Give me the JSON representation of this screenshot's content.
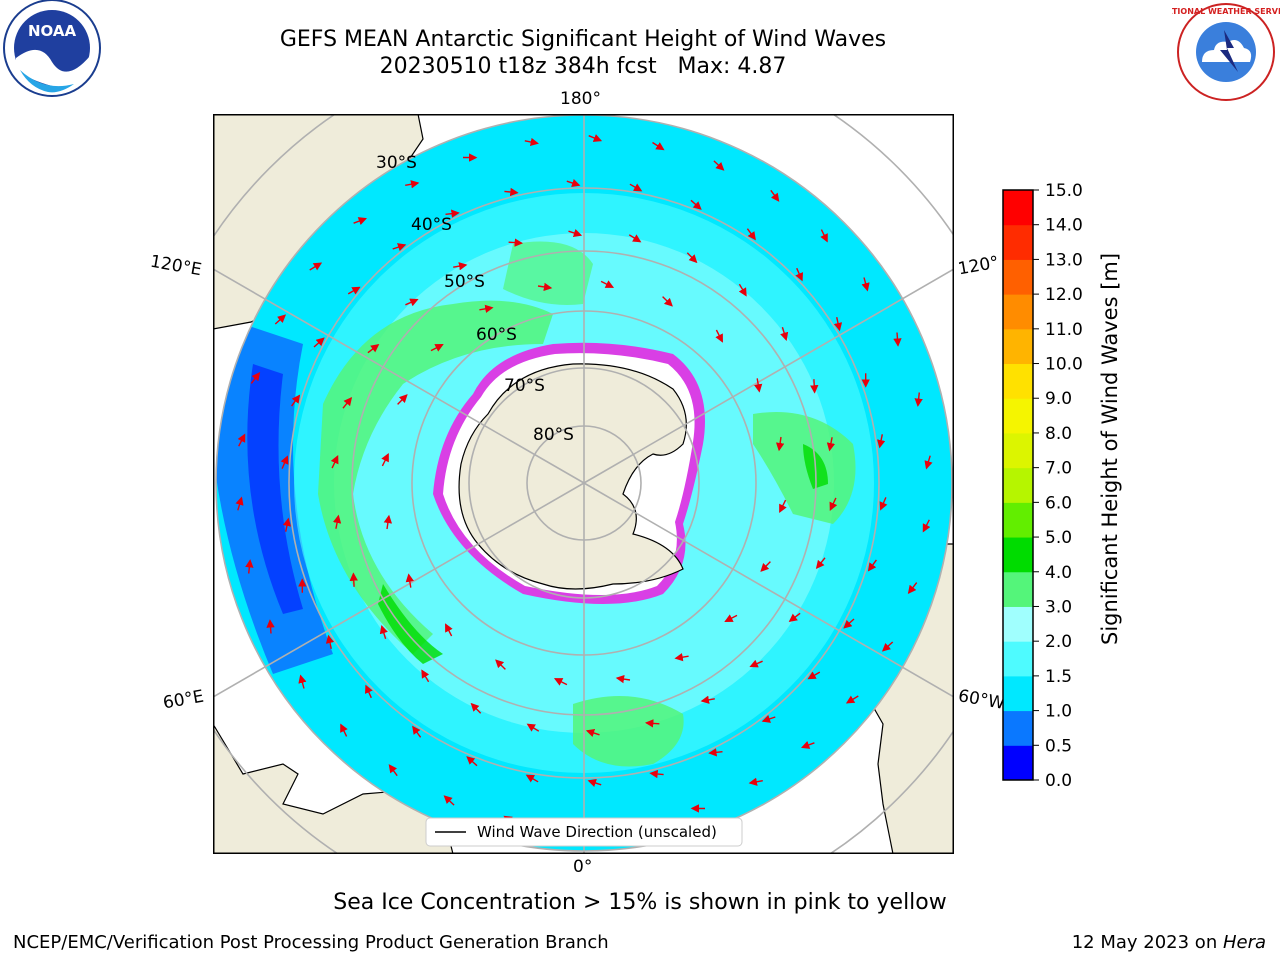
{
  "title": {
    "line1": "GEFS MEAN Antarctic Significant Height of Wind Waves",
    "line2": "20230510 t18z 384h fcst   Max: 4.87"
  },
  "logos": {
    "left": "noaa-logo",
    "right": "nws-logo",
    "left_text": "NOAA",
    "right_text": "NATIONAL WEATHER SERVICE"
  },
  "map": {
    "projection": "south-polar-stereographic",
    "longitude_labels": {
      "top": "180°",
      "bottom": "0°",
      "upper_left": "120°E",
      "upper_right": "120°",
      "lower_left": "60°E",
      "lower_right": "60°W"
    },
    "latitude_labels": [
      "30°S",
      "40°S",
      "50°S",
      "60°S",
      "70°S",
      "80°S"
    ],
    "legend_label": "Wind Wave Direction (unscaled)",
    "arrow_color": "#e8000b"
  },
  "colorbar": {
    "label": "Significant Height of Wind Waves [m]",
    "ticks": [
      "0.0",
      "0.5",
      "1.0",
      "1.5",
      "2.0",
      "3.0",
      "4.0",
      "5.0",
      "6.0",
      "7.0",
      "8.0",
      "9.0",
      "10.0",
      "11.0",
      "12.0",
      "13.0",
      "14.0",
      "15.0"
    ],
    "colors": [
      "#0000ff",
      "#0a78ff",
      "#00e8ff",
      "#4efbff",
      "#a0fffe",
      "#54f57a",
      "#00dc00",
      "#62ee00",
      "#b6f500",
      "#dcf500",
      "#f5f500",
      "#ffe100",
      "#ffb400",
      "#ff8c00",
      "#ff6000",
      "#ff2c00",
      "#ff0000"
    ]
  },
  "caption": "Sea Ice Concentration > 15% is shown in pink to yellow",
  "credit": "NCEP/EMC/Verification Post Processing Product Generation Branch",
  "datestamp": {
    "date": "12 May 2023 on ",
    "machine": "Hera"
  }
}
